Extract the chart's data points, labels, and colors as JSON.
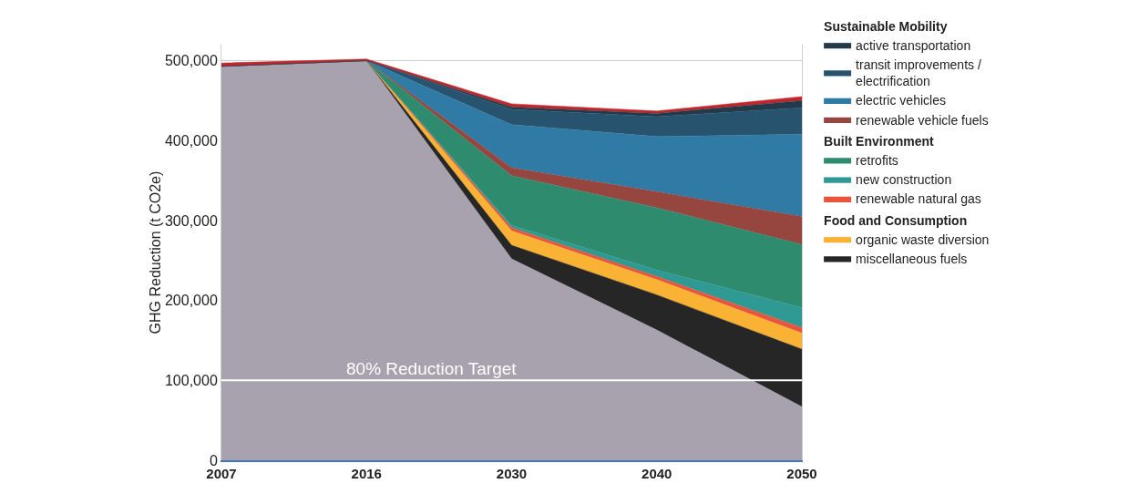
{
  "chart_data": {
    "type": "area",
    "stacked": true,
    "ylabel": "GHG Reduction (t CO2e)",
    "categories": [
      "2007",
      "2016",
      "2030",
      "2040",
      "2050"
    ],
    "series": [
      {
        "color": "#a7a2ae",
        "values": [
          493000,
          500000,
          252000,
          163000,
          67000
        ]
      },
      {
        "name": "miscellaneous fuels",
        "color": "#262626",
        "values": [
          0,
          0,
          17000,
          44000,
          72000
        ]
      },
      {
        "name": "organic waste diversion",
        "color": "#f9b233",
        "values": [
          0,
          0,
          18000,
          19000,
          20000
        ]
      },
      {
        "name": "renewable natural gas",
        "color": "#e8553d",
        "values": [
          0,
          0,
          4000,
          4000,
          7000
        ]
      },
      {
        "name": "new construction",
        "color": "#2e9a93",
        "values": [
          0,
          0,
          3000,
          8000,
          25000
        ]
      },
      {
        "name": "retrofits",
        "color": "#2e8b6e",
        "values": [
          0,
          0,
          62000,
          78000,
          79000
        ]
      },
      {
        "name": "renewable vehicle fuels",
        "color": "#96463f",
        "values": [
          0,
          0,
          10000,
          20000,
          35000
        ]
      },
      {
        "name": "electric vehicles",
        "color": "#2f7ba5",
        "values": [
          0,
          0,
          54000,
          69000,
          103000
        ]
      },
      {
        "name": "transit improvements / electrification",
        "color": "#27536e",
        "values": [
          0,
          0,
          19000,
          25000,
          33000
        ]
      },
      {
        "name": "active transportation",
        "color": "#233a4a",
        "values": [
          0,
          0,
          3000,
          4000,
          9000
        ]
      },
      {
        "color": "#c0272d",
        "values": [
          4000,
          2000,
          4000,
          3000,
          5000
        ]
      }
    ],
    "annotations": [
      "Sustainable Mobility",
      "Built Environment",
      "Food and Consumption"
    ],
    "ylim": [
      0,
      520000
    ],
    "yticks": [
      {
        "value": 0,
        "label": "0"
      },
      {
        "value": 100000,
        "label": "100,000"
      },
      {
        "value": 200000,
        "label": "200,000"
      },
      {
        "value": 300000,
        "label": "300,000"
      },
      {
        "value": 400000,
        "label": "400,000"
      },
      {
        "value": 500000,
        "label": "500,000"
      }
    ],
    "ref_lines": [
      {
        "axis": "y",
        "value": 100000,
        "label": "80% Reduction Target",
        "color": "#ffffff"
      }
    ],
    "grid": "y",
    "legend": "right"
  }
}
